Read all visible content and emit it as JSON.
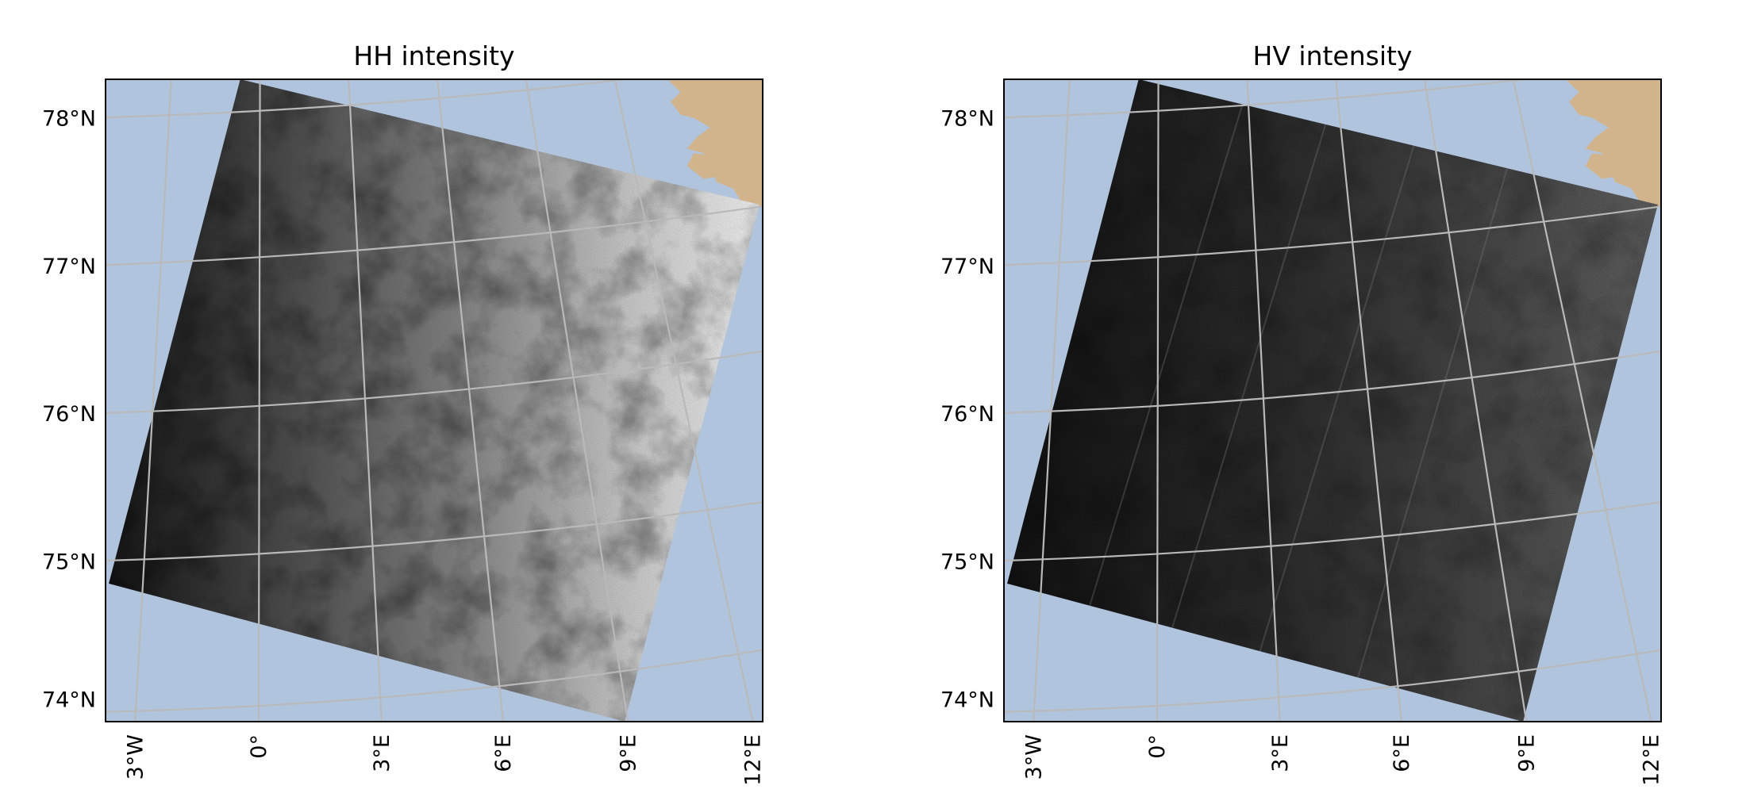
{
  "colors": {
    "ocean": "#b0c4de",
    "land": "#d2b48c",
    "gridline": "#b9b9b9",
    "frame": "#000000"
  },
  "panels": [
    {
      "title": "HH intensity",
      "image_style": "bright-gradient",
      "lat_labels": [
        "78°N",
        "77°N",
        "76°N",
        "75°N",
        "74°N"
      ],
      "lon_labels": [
        "3°W",
        "0°",
        "3°E",
        "6°E",
        "9°E",
        "12°E"
      ]
    },
    {
      "title": "HV intensity",
      "image_style": "dark-striped",
      "lat_labels": [
        "78°N",
        "77°N",
        "76°N",
        "75°N",
        "74°N"
      ],
      "lon_labels": [
        "3°W",
        "0°",
        "3°E",
        "6°E",
        "9°E",
        "12°E"
      ]
    }
  ]
}
